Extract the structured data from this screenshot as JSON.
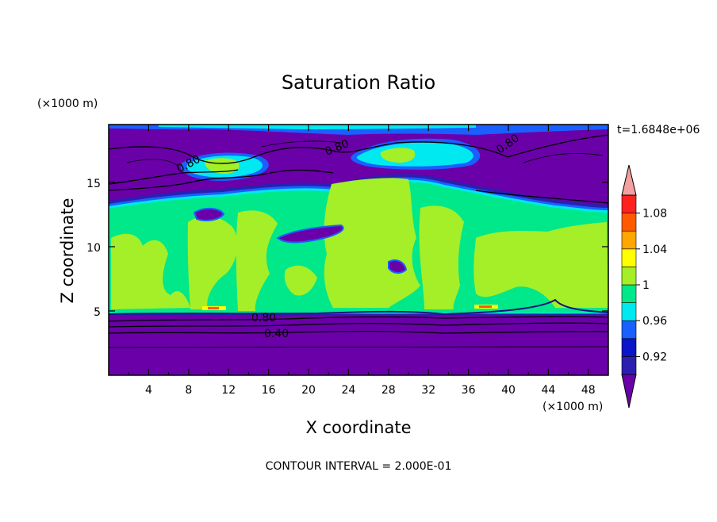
{
  "chart_data": {
    "type": "heatmap",
    "title": "Saturation Ratio",
    "xlabel": "X coordinate",
    "ylabel": "Z coordinate",
    "x_units": "(×1000 m)",
    "y_units": "(×1000 m)",
    "time_label": "t=1.6848e+06",
    "footer": "CONTOUR INTERVAL = 2.000E-01",
    "xlim": [
      0,
      50
    ],
    "ylim": [
      0,
      19.5
    ],
    "x_ticks": [
      "4",
      "8",
      "12",
      "16",
      "20",
      "24",
      "28",
      "32",
      "36",
      "40",
      "44",
      "48"
    ],
    "y_ticks": [
      "5",
      "10",
      "15"
    ],
    "colorbar_labels": [
      "0.92",
      "0.96",
      "1",
      "1.04",
      "1.08"
    ],
    "colorbar_colors": [
      "#6a00a8",
      "#2a1fb0",
      "#0a14c8",
      "#1a5fff",
      "#00e8f0",
      "#00e88a",
      "#a4ef28",
      "#ffff00",
      "#ffa600",
      "#ff5a00",
      "#ff2020",
      "#f5a0a0"
    ],
    "contour_labels": [
      "0.80",
      "0.80",
      "0.80",
      "0.80",
      "0.40"
    ],
    "colors": {
      "dry": "#6a00a8",
      "dark_blue": "#0a14c8",
      "blue": "#1a5fff",
      "cyan": "#00e8f0",
      "green": "#00e88a",
      "yellowgreen": "#a4ef28",
      "yellow": "#ffff00",
      "orange": "#ffa600",
      "red": "#ff2020"
    }
  }
}
